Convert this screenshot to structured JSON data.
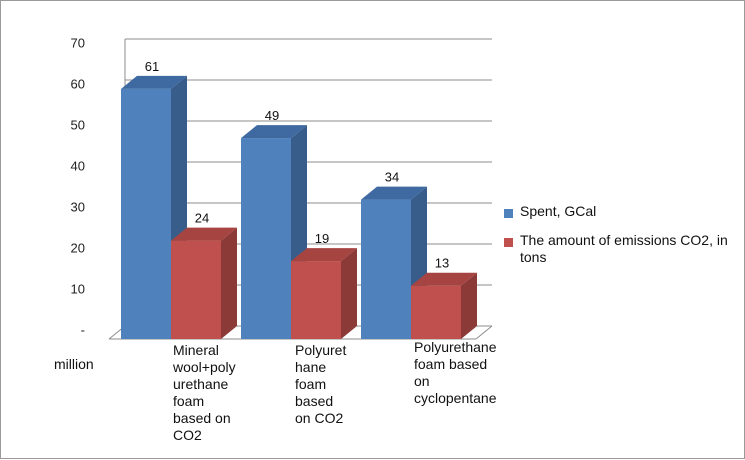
{
  "chart_data": {
    "type": "bar",
    "style": "3d-clustered-column",
    "categories": [
      "Mineral wool+poly urethane foam based on CO2",
      "Polyurethane foam based on CO2",
      "Polyurethane foam based on cyclopentane"
    ],
    "category_display": [
      "Mineral\nwool+poly\nurethane\nfoam\nbased on\nCO2",
      "Polyuret\nhane\nfoam\nbased\non CO2",
      "Polyurethane\nfoam based\non\ncyclopentane"
    ],
    "series": [
      {
        "name": "Spent, GCal",
        "values": [
          61,
          49,
          34
        ],
        "color": "#4f81bd",
        "side_color": "#385d8a",
        "top_color": "#3f6aa1"
      },
      {
        "name": "The amount of emissions CO2, in tons",
        "values": [
          24,
          19,
          13
        ],
        "color": "#c0504d",
        "side_color": "#8c3a38",
        "top_color": "#a64442"
      }
    ],
    "ylim": [
      0,
      70
    ],
    "yticks": [
      0,
      10,
      20,
      30,
      40,
      50,
      60,
      70
    ],
    "ytick_labels": [
      "-",
      "10",
      "20",
      "30",
      "40",
      "50",
      "60",
      "70"
    ],
    "unit_label": "million",
    "grid": true,
    "legend_position": "right",
    "data_labels": true
  }
}
